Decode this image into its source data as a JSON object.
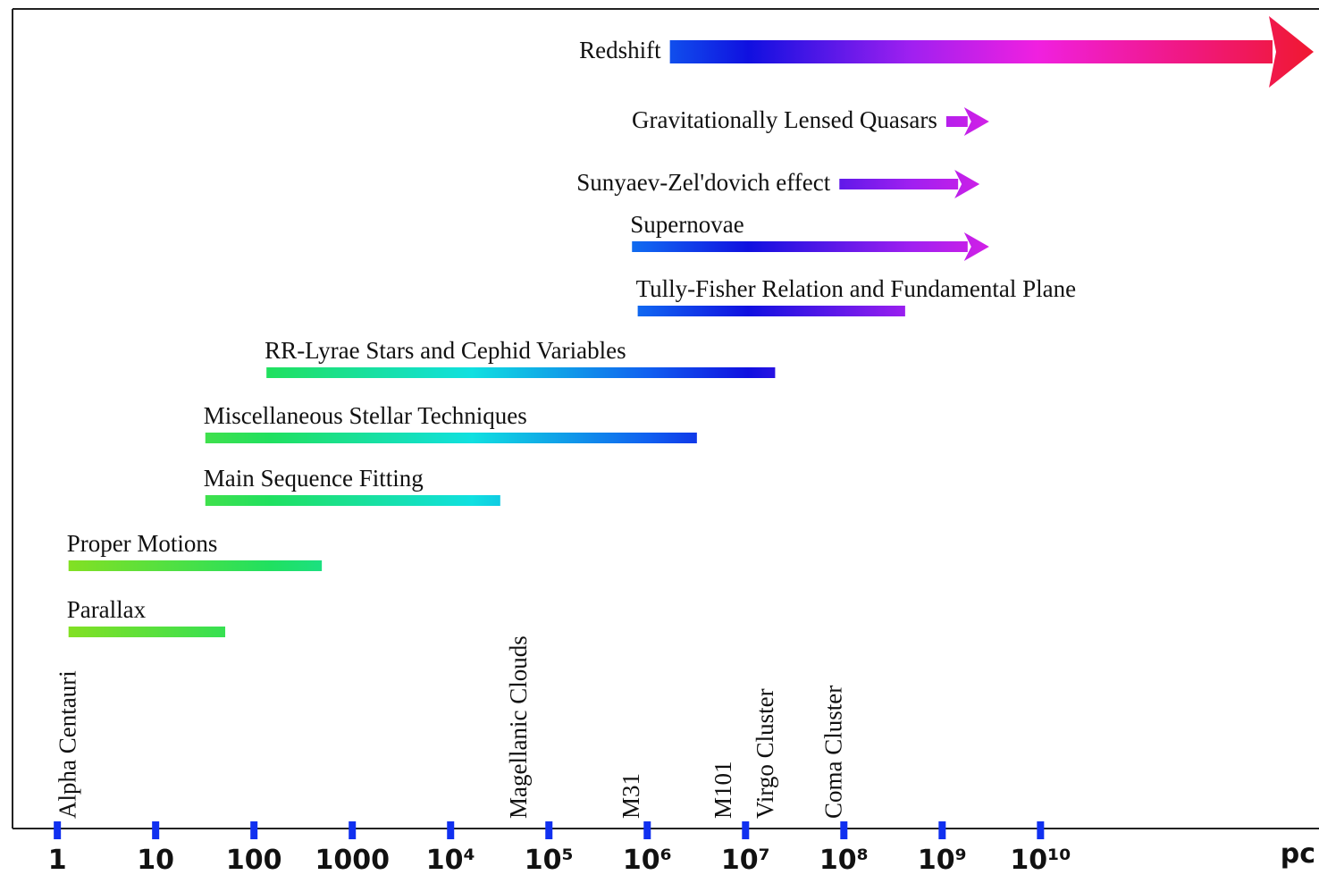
{
  "chart_data": {
    "type": "range",
    "x_label": "pc",
    "xscale": "log",
    "xlim": [
      0.35,
      6000000000000
    ],
    "xticks": [
      1,
      10,
      100,
      1000,
      {
        "value": 10000,
        "label": "10⁴"
      },
      {
        "value": 100000,
        "label": "10⁵"
      },
      {
        "value": 1000000,
        "label": "10⁶"
      },
      {
        "value": 10000000,
        "label": "10⁷"
      },
      {
        "value": 100000000,
        "label": "10⁸"
      },
      {
        "value": 1000000000,
        "label": "10⁹"
      },
      {
        "value": 10000000000,
        "label": "10¹⁰"
      }
    ],
    "methods": [
      {
        "name": "Redshift",
        "start": 1700000,
        "end": 6000000000000,
        "arrow": true
      },
      {
        "name": "Gravitationally Lensed Quasars",
        "start": 1100000000,
        "end": 3000000000,
        "arrow": true
      },
      {
        "name": "Sunyaev-Zel'dovich effect",
        "start": 90000000,
        "end": 2400000000,
        "arrow": true
      },
      {
        "name": "Supernovae",
        "start": 700000,
        "end": 3000000000,
        "arrow": true
      },
      {
        "name": "Tully-Fisher Relation and Fundamental Plane",
        "start": 800000,
        "end": 420000000,
        "arrow": false
      },
      {
        "name": "RR-Lyrae Stars and Cephid Variables",
        "start": 134,
        "end": 20000000,
        "arrow": false
      },
      {
        "name": "Miscellaneous Stellar Techniques",
        "start": 32,
        "end": 3200000,
        "arrow": false
      },
      {
        "name": "Main Sequence Fitting",
        "start": 32,
        "end": 32000,
        "arrow": false
      },
      {
        "name": "Proper Motions",
        "start": 1.3,
        "end": 490,
        "arrow": false
      },
      {
        "name": "Parallax",
        "start": 1.3,
        "end": 51,
        "arrow": false
      }
    ],
    "landmarks": [
      {
        "name": "Alpha Centauri",
        "value": 1.3
      },
      {
        "name": "Magellanic Clouds",
        "value": 50000
      },
      {
        "name": "M31",
        "value": 700000
      },
      {
        "name": "M101",
        "value": 6000000
      },
      {
        "name": "Virgo Cluster",
        "value": 16000000
      },
      {
        "name": "Coma Cluster",
        "value": 80000000
      }
    ]
  }
}
